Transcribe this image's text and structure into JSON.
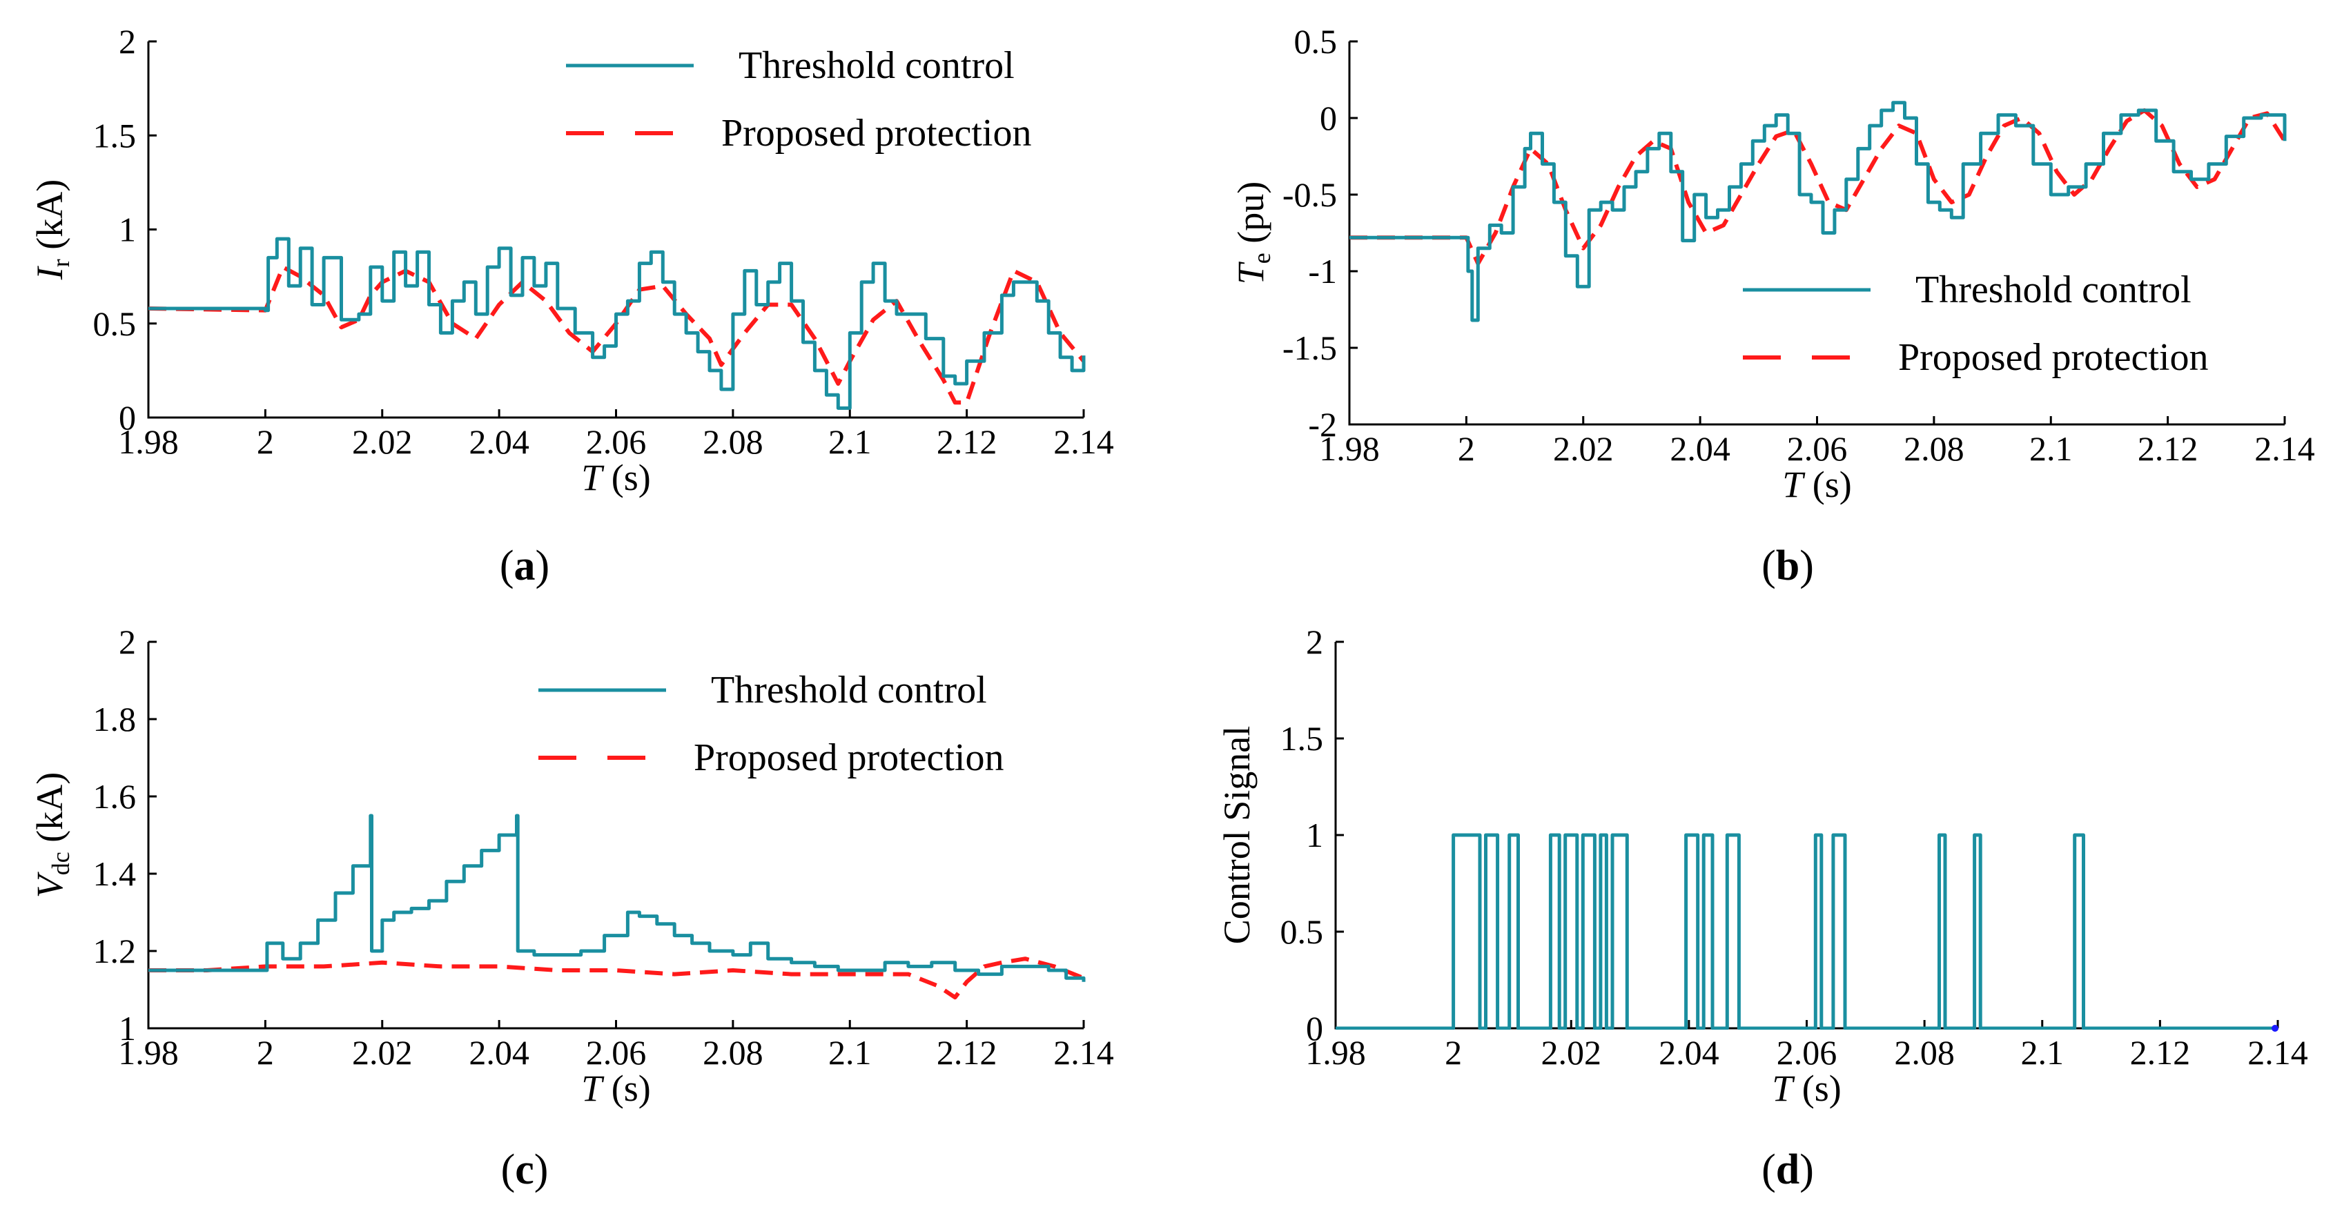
{
  "colors": {
    "threshold": "#1a8fa0",
    "proposed": "#ff1a1a",
    "marker": "#1a1aff"
  },
  "chart_data": [
    {
      "id": "a",
      "type": "line",
      "caption_letter": "a",
      "ylabel_main": "I",
      "ylabel_sub": "r",
      "ylabel_unit": " (kA)",
      "xlabel_main": "T",
      "xlabel_unit": " (s)",
      "xlim": [
        1.98,
        2.14
      ],
      "ylim": [
        0,
        2
      ],
      "xticks": [
        "1.98",
        "2",
        "2.02",
        "2.04",
        "2.06",
        "2.08",
        "2.1",
        "2.12",
        "2.14"
      ],
      "yticks": [
        "0",
        "0.5",
        "1",
        "1.5",
        "2"
      ],
      "legend": [
        "Threshold control",
        "Proposed protection"
      ],
      "legend_position": "top-right",
      "series": [
        {
          "name": "Threshold control",
          "x": [
            1.98,
            2.0,
            2.0005,
            2.002,
            2.004,
            2.006,
            2.008,
            2.01,
            2.013,
            2.016,
            2.018,
            2.02,
            2.022,
            2.024,
            2.026,
            2.028,
            2.03,
            2.032,
            2.034,
            2.036,
            2.038,
            2.04,
            2.042,
            2.044,
            2.046,
            2.048,
            2.05,
            2.053,
            2.056,
            2.058,
            2.06,
            2.062,
            2.064,
            2.066,
            2.068,
            2.07,
            2.072,
            2.074,
            2.076,
            2.078,
            2.08,
            2.082,
            2.084,
            2.086,
            2.088,
            2.09,
            2.092,
            2.094,
            2.096,
            2.098,
            2.1,
            2.102,
            2.104,
            2.106,
            2.108,
            2.11,
            2.113,
            2.116,
            2.118,
            2.12,
            2.123,
            2.126,
            2.128,
            2.13,
            2.132,
            2.134,
            2.136,
            2.138,
            2.14
          ],
          "values": [
            0.58,
            0.57,
            0.85,
            0.95,
            0.7,
            0.9,
            0.6,
            0.85,
            0.52,
            0.55,
            0.8,
            0.62,
            0.88,
            0.7,
            0.88,
            0.6,
            0.45,
            0.62,
            0.72,
            0.55,
            0.8,
            0.9,
            0.65,
            0.85,
            0.7,
            0.82,
            0.58,
            0.45,
            0.32,
            0.38,
            0.55,
            0.62,
            0.82,
            0.88,
            0.72,
            0.55,
            0.45,
            0.35,
            0.25,
            0.15,
            0.55,
            0.78,
            0.6,
            0.72,
            0.82,
            0.62,
            0.4,
            0.25,
            0.12,
            0.05,
            0.45,
            0.72,
            0.82,
            0.62,
            0.55,
            0.55,
            0.42,
            0.22,
            0.18,
            0.3,
            0.45,
            0.65,
            0.72,
            0.72,
            0.62,
            0.45,
            0.32,
            0.25,
            0.33
          ]
        },
        {
          "name": "Proposed protection",
          "x": [
            1.98,
            2.0,
            2.003,
            2.006,
            2.008,
            2.01,
            2.013,
            2.016,
            2.018,
            2.02,
            2.024,
            2.028,
            2.032,
            2.036,
            2.04,
            2.044,
            2.048,
            2.052,
            2.056,
            2.06,
            2.064,
            2.068,
            2.072,
            2.076,
            2.078,
            2.082,
            2.086,
            2.09,
            2.094,
            2.098,
            2.1,
            2.104,
            2.108,
            2.112,
            2.116,
            2.118,
            2.12,
            2.124,
            2.128,
            2.132,
            2.136,
            2.14
          ],
          "values": [
            0.58,
            0.57,
            0.8,
            0.75,
            0.7,
            0.65,
            0.48,
            0.52,
            0.65,
            0.72,
            0.78,
            0.72,
            0.5,
            0.42,
            0.6,
            0.72,
            0.62,
            0.45,
            0.35,
            0.5,
            0.68,
            0.7,
            0.55,
            0.42,
            0.28,
            0.45,
            0.6,
            0.6,
            0.42,
            0.18,
            0.3,
            0.52,
            0.62,
            0.4,
            0.2,
            0.08,
            0.08,
            0.45,
            0.78,
            0.72,
            0.45,
            0.3
          ]
        }
      ]
    },
    {
      "id": "b",
      "type": "line",
      "caption_letter": "b",
      "ylabel_main": "T",
      "ylabel_sub": "e",
      "ylabel_unit": " (pu)",
      "xlabel_main": "T",
      "xlabel_unit": " (s)",
      "xlim": [
        1.98,
        2.14
      ],
      "ylim": [
        -2,
        0.5
      ],
      "xticks": [
        "1.98",
        "2",
        "2.02",
        "2.04",
        "2.06",
        "2.08",
        "2.1",
        "2.12",
        "2.14"
      ],
      "yticks": [
        "-2",
        "-1.5",
        "-1",
        "-0.5",
        "0",
        "0.5"
      ],
      "legend": [
        "Threshold control",
        "Proposed protection"
      ],
      "legend_position": "bottom-right",
      "series": [
        {
          "name": "Threshold control",
          "x": [
            1.98,
            1.99,
            2.0,
            2.0003,
            2.001,
            2.002,
            2.004,
            2.006,
            2.008,
            2.01,
            2.011,
            2.013,
            2.015,
            2.017,
            2.019,
            2.021,
            2.023,
            2.025,
            2.027,
            2.029,
            2.031,
            2.033,
            2.035,
            2.037,
            2.039,
            2.041,
            2.043,
            2.045,
            2.047,
            2.049,
            2.051,
            2.053,
            2.055,
            2.057,
            2.059,
            2.061,
            2.063,
            2.065,
            2.067,
            2.069,
            2.071,
            2.073,
            2.075,
            2.077,
            2.079,
            2.081,
            2.083,
            2.085,
            2.088,
            2.091,
            2.094,
            2.097,
            2.1,
            2.103,
            2.106,
            2.109,
            2.112,
            2.115,
            2.118,
            2.121,
            2.124,
            2.127,
            2.13,
            2.133,
            2.136,
            2.14
          ],
          "values": [
            -0.78,
            -0.78,
            -0.78,
            -1.0,
            -1.32,
            -0.85,
            -0.7,
            -0.75,
            -0.45,
            -0.2,
            -0.1,
            -0.3,
            -0.55,
            -0.9,
            -1.1,
            -0.6,
            -0.55,
            -0.6,
            -0.45,
            -0.35,
            -0.2,
            -0.1,
            -0.35,
            -0.8,
            -0.5,
            -0.65,
            -0.6,
            -0.45,
            -0.3,
            -0.15,
            -0.05,
            0.02,
            -0.1,
            -0.5,
            -0.55,
            -0.75,
            -0.6,
            -0.4,
            -0.2,
            -0.05,
            0.05,
            0.1,
            0.0,
            -0.3,
            -0.55,
            -0.6,
            -0.65,
            -0.3,
            -0.1,
            0.02,
            -0.05,
            -0.3,
            -0.5,
            -0.45,
            -0.3,
            -0.1,
            0.02,
            0.05,
            -0.15,
            -0.35,
            -0.4,
            -0.3,
            -0.12,
            0.0,
            0.02,
            -0.15
          ]
        },
        {
          "name": "Proposed protection",
          "x": [
            1.98,
            1.99,
            2.0,
            2.002,
            2.005,
            2.008,
            2.011,
            2.014,
            2.017,
            2.02,
            2.023,
            2.026,
            2.029,
            2.032,
            2.035,
            2.038,
            2.041,
            2.044,
            2.047,
            2.05,
            2.053,
            2.056,
            2.059,
            2.062,
            2.065,
            2.068,
            2.071,
            2.074,
            2.077,
            2.08,
            2.083,
            2.086,
            2.089,
            2.092,
            2.095,
            2.098,
            2.101,
            2.104,
            2.107,
            2.11,
            2.113,
            2.116,
            2.119,
            2.122,
            2.125,
            2.128,
            2.131,
            2.134,
            2.137,
            2.14
          ],
          "values": [
            -0.78,
            -0.78,
            -0.78,
            -0.95,
            -0.75,
            -0.45,
            -0.2,
            -0.3,
            -0.6,
            -0.85,
            -0.7,
            -0.45,
            -0.25,
            -0.15,
            -0.2,
            -0.55,
            -0.75,
            -0.7,
            -0.5,
            -0.3,
            -0.12,
            -0.08,
            -0.3,
            -0.55,
            -0.6,
            -0.4,
            -0.2,
            -0.05,
            -0.1,
            -0.4,
            -0.55,
            -0.5,
            -0.25,
            -0.05,
            0.0,
            -0.1,
            -0.35,
            -0.5,
            -0.4,
            -0.2,
            -0.02,
            0.05,
            -0.05,
            -0.3,
            -0.45,
            -0.4,
            -0.2,
            0.0,
            0.03,
            -0.15
          ]
        }
      ]
    },
    {
      "id": "c",
      "type": "line",
      "caption_letter": "c",
      "ylabel_main": "V",
      "ylabel_sub": "dc",
      "ylabel_unit": " (kA)",
      "xlabel_main": "T",
      "xlabel_unit": " (s)",
      "xlim": [
        1.98,
        2.14
      ],
      "ylim": [
        1,
        2
      ],
      "xticks": [
        "1.98",
        "2",
        "2.02",
        "2.04",
        "2.06",
        "2.08",
        "2.1",
        "2.12",
        "2.14"
      ],
      "yticks": [
        "1",
        "1.2",
        "1.4",
        "1.6",
        "1.8",
        "2"
      ],
      "legend": [
        "Threshold control",
        "Proposed protection"
      ],
      "legend_position": "top-right",
      "series": [
        {
          "name": "Threshold control",
          "x": [
            1.98,
            1.99,
            2.0,
            2.0003,
            2.003,
            2.006,
            2.009,
            2.012,
            2.015,
            2.018,
            2.0182,
            2.02,
            2.022,
            2.025,
            2.028,
            2.031,
            2.034,
            2.037,
            2.04,
            2.043,
            2.0432,
            2.046,
            2.05,
            2.054,
            2.058,
            2.062,
            2.064,
            2.067,
            2.07,
            2.073,
            2.076,
            2.08,
            2.083,
            2.086,
            2.09,
            2.094,
            2.098,
            2.102,
            2.106,
            2.11,
            2.114,
            2.118,
            2.122,
            2.126,
            2.13,
            2.134,
            2.137,
            2.14
          ],
          "values": [
            1.15,
            1.15,
            1.15,
            1.22,
            1.18,
            1.22,
            1.28,
            1.35,
            1.42,
            1.55,
            1.2,
            1.28,
            1.3,
            1.31,
            1.33,
            1.38,
            1.42,
            1.46,
            1.5,
            1.55,
            1.2,
            1.19,
            1.19,
            1.2,
            1.24,
            1.3,
            1.29,
            1.27,
            1.24,
            1.22,
            1.2,
            1.19,
            1.22,
            1.18,
            1.17,
            1.16,
            1.15,
            1.15,
            1.17,
            1.16,
            1.17,
            1.15,
            1.14,
            1.16,
            1.16,
            1.15,
            1.13,
            1.12
          ]
        },
        {
          "name": "Proposed protection",
          "x": [
            1.98,
            1.99,
            2.0,
            2.01,
            2.02,
            2.03,
            2.04,
            2.05,
            2.06,
            2.07,
            2.08,
            2.09,
            2.1,
            2.11,
            2.115,
            2.118,
            2.12,
            2.123,
            2.126,
            2.13,
            2.135,
            2.14
          ],
          "values": [
            1.15,
            1.15,
            1.16,
            1.16,
            1.17,
            1.16,
            1.16,
            1.15,
            1.15,
            1.14,
            1.15,
            1.14,
            1.14,
            1.14,
            1.11,
            1.08,
            1.12,
            1.16,
            1.17,
            1.18,
            1.16,
            1.13
          ]
        }
      ]
    },
    {
      "id": "d",
      "type": "line",
      "caption_letter": "d",
      "ylabel_main": "Control Signal",
      "xlabel_main": "T",
      "xlabel_unit": " (s)",
      "xlim": [
        1.98,
        2.14
      ],
      "ylim": [
        0,
        2
      ],
      "xticks": [
        "1.98",
        "2",
        "2.02",
        "2.04",
        "2.06",
        "2.08",
        "2.1",
        "2.12",
        "2.14"
      ],
      "yticks": [
        "0",
        "0.5",
        "1",
        "1.5",
        "2"
      ],
      "series": [
        {
          "name": "Threshold control",
          "pulses": [
            [
              2.0,
              2.0045
            ],
            [
              2.0055,
              2.0075
            ],
            [
              2.0095,
              2.011
            ],
            [
              2.0165,
              2.018
            ],
            [
              2.019,
              2.021
            ],
            [
              2.022,
              2.024
            ],
            [
              2.025,
              2.026
            ],
            [
              2.027,
              2.0295
            ],
            [
              2.0395,
              2.0415
            ],
            [
              2.0425,
              2.044
            ],
            [
              2.0465,
              2.0485
            ],
            [
              2.0615,
              2.0625
            ],
            [
              2.0645,
              2.0665
            ],
            [
              2.0825,
              2.0835
            ],
            [
              2.0885,
              2.0895
            ],
            [
              2.1055,
              2.107
            ]
          ]
        }
      ]
    }
  ]
}
